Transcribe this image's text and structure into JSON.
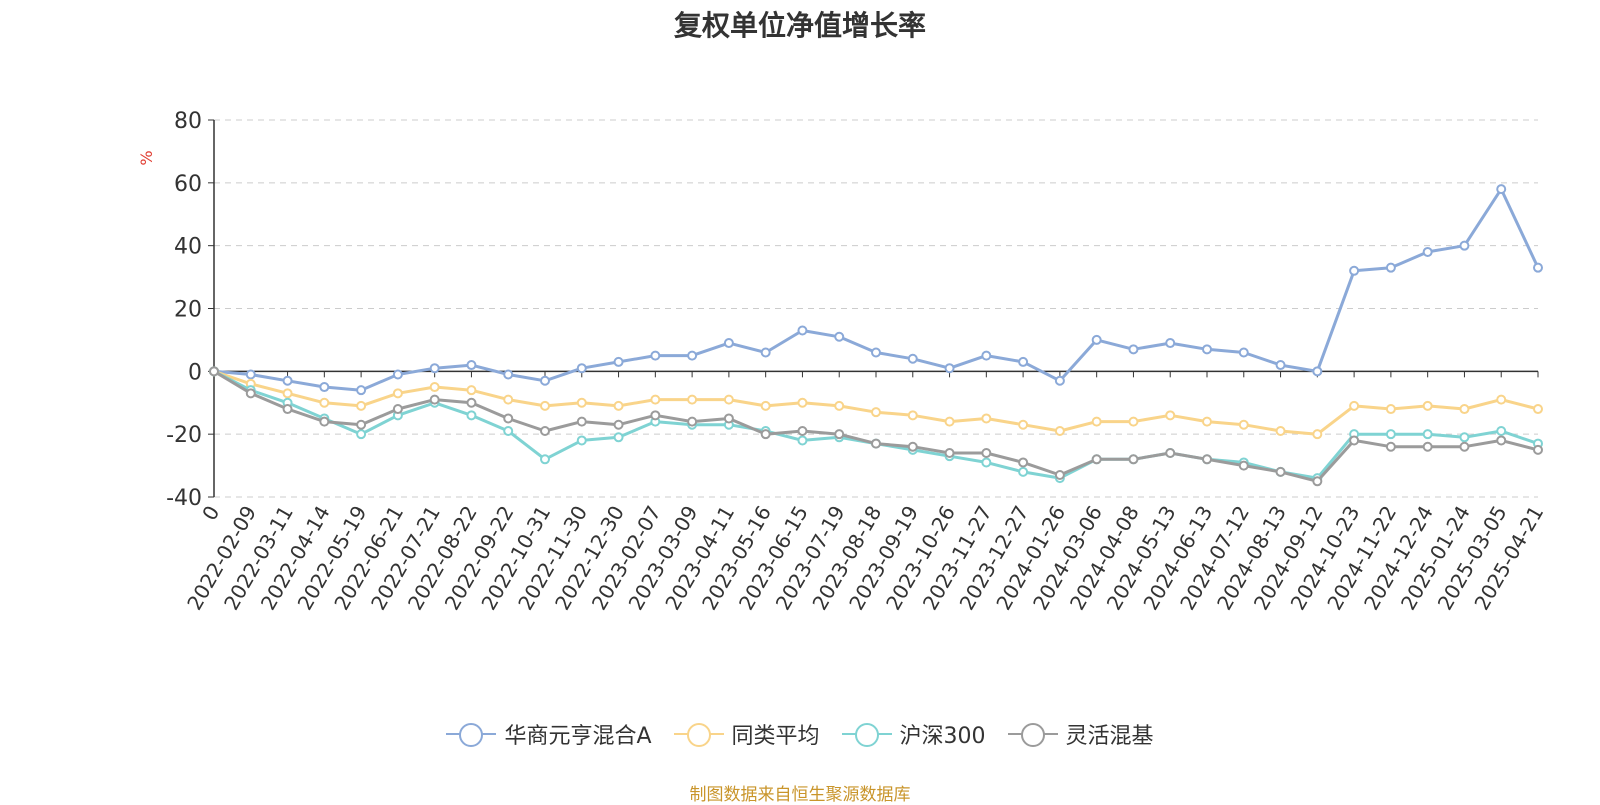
{
  "chart_data": {
    "type": "line",
    "title": "复权单位净值增长率",
    "ylabel": "%",
    "ylim": [
      -40,
      80
    ],
    "yticks": [
      -40,
      -20,
      0,
      20,
      40,
      60,
      80
    ],
    "grid": true,
    "legend_position": "bottom",
    "x_labels": [
      "0",
      "2022-02-09",
      "2022-03-11",
      "2022-04-14",
      "2022-05-19",
      "2022-06-21",
      "2022-07-21",
      "2022-08-22",
      "2022-09-22",
      "2022-10-31",
      "2022-11-30",
      "2022-12-30",
      "2023-02-07",
      "2023-03-09",
      "2023-04-11",
      "2023-05-16",
      "2023-06-15",
      "2023-07-19",
      "2023-08-18",
      "2023-09-19",
      "2023-10-26",
      "2023-11-27",
      "2023-12-27",
      "2024-01-26",
      "2024-03-06",
      "2024-04-08",
      "2024-05-13",
      "2024-06-13",
      "2024-07-12",
      "2024-08-13",
      "2024-09-12",
      "2024-10-23",
      "2024-11-22",
      "2024-12-24",
      "2025-01-24",
      "2025-03-05",
      "2025-04-21"
    ],
    "series": [
      {
        "name": "华商元亨混合A",
        "color": "#8ba9d8",
        "values": [
          0,
          -1,
          -3,
          -5,
          -6,
          -1,
          1,
          2,
          -1,
          -3,
          1,
          3,
          5,
          5,
          9,
          6,
          13,
          11,
          6,
          4,
          1,
          5,
          3,
          -3,
          10,
          7,
          9,
          7,
          6,
          2,
          0,
          32,
          33,
          38,
          40,
          58,
          33
        ]
      },
      {
        "name": "同类平均",
        "color": "#f9d48a",
        "values": [
          0,
          -4,
          -7,
          -10,
          -11,
          -7,
          -5,
          -6,
          -9,
          -11,
          -10,
          -11,
          -9,
          -9,
          -9,
          -11,
          -10,
          -11,
          -13,
          -14,
          -16,
          -15,
          -17,
          -19,
          -16,
          -16,
          -14,
          -16,
          -17,
          -19,
          -20,
          -11,
          -12,
          -11,
          -12,
          -9,
          -12
        ]
      },
      {
        "name": "沪深300",
        "color": "#7fd3d3",
        "values": [
          0,
          -6,
          -10,
          -15,
          -20,
          -14,
          -10,
          -14,
          -19,
          -28,
          -22,
          -21,
          -16,
          -17,
          -17,
          -19,
          -22,
          -21,
          -23,
          -25,
          -27,
          -29,
          -32,
          -34,
          -28,
          -28,
          -26,
          -28,
          -29,
          -32,
          -34,
          -20,
          -20,
          -20,
          -21,
          -19,
          -23
        ]
      },
      {
        "name": "灵活混基",
        "color": "#9b9b9b",
        "values": [
          0,
          -7,
          -12,
          -16,
          -17,
          -12,
          -9,
          -10,
          -15,
          -19,
          -16,
          -17,
          -14,
          -16,
          -15,
          -20,
          -19,
          -20,
          -23,
          -24,
          -26,
          -26,
          -29,
          -33,
          -28,
          -28,
          -26,
          -28,
          -30,
          -32,
          -35,
          -22,
          -24,
          -24,
          -24,
          -22,
          -25
        ]
      }
    ]
  },
  "source_note": "制图数据来自恒生聚源数据库"
}
